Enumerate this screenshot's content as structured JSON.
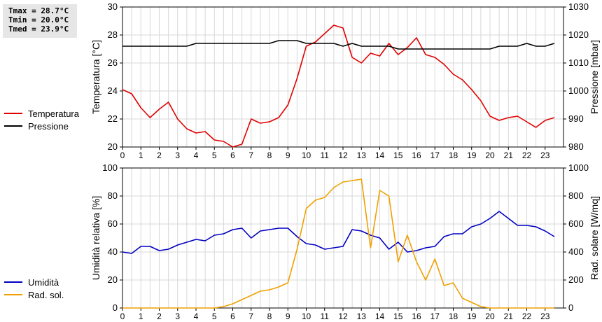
{
  "stats": {
    "tmax": "Tmax = 28.7°C",
    "tmin": "Tmin = 20.0°C",
    "tmed": "Tmed = 23.9°C"
  },
  "colors": {
    "temperature": "#e00000",
    "pressure": "#000000",
    "humidity": "#0000c0",
    "radiation": "#f0a000",
    "grid": "#d8d8d8"
  },
  "chart_data": [
    {
      "type": "line",
      "xlabel": "",
      "xlim": [
        0,
        24
      ],
      "xticks": [
        0,
        1,
        2,
        3,
        4,
        5,
        6,
        7,
        8,
        9,
        10,
        11,
        12,
        13,
        14,
        15,
        16,
        17,
        18,
        19,
        20,
        21,
        22,
        23
      ],
      "ylabel": "Temperatura [°C]",
      "ylim": [
        20,
        30
      ],
      "yticks": [
        20,
        22,
        24,
        26,
        28,
        30
      ],
      "y2label": "Pressione [mbar]",
      "y2lim": [
        980,
        1030
      ],
      "y2ticks": [
        980,
        990,
        1000,
        1010,
        1020,
        1030
      ],
      "grid": true,
      "legend_position": "left",
      "series": [
        {
          "name": "Temperatura",
          "axis": "left",
          "color": "#e00000",
          "x": [
            0,
            0.5,
            1,
            1.5,
            2,
            2.5,
            3,
            3.5,
            4,
            4.5,
            5,
            5.5,
            6,
            6.5,
            7,
            7.5,
            8,
            8.5,
            9,
            9.5,
            10,
            10.5,
            11,
            11.5,
            12,
            12.5,
            13,
            13.5,
            14,
            14.5,
            15,
            15.5,
            16,
            16.5,
            17,
            17.5,
            18,
            18.5,
            19,
            19.5,
            20,
            20.5,
            21,
            21.5,
            22,
            22.5,
            23,
            23.5
          ],
          "y": [
            24.1,
            23.8,
            22.8,
            22.1,
            22.7,
            23.2,
            22.0,
            21.3,
            21.0,
            21.1,
            20.5,
            20.4,
            20.0,
            20.2,
            22.0,
            21.7,
            21.8,
            22.1,
            23.0,
            24.9,
            27.2,
            27.5,
            28.1,
            28.7,
            28.5,
            26.4,
            26.0,
            26.7,
            26.5,
            27.4,
            26.6,
            27.1,
            27.8,
            26.6,
            26.4,
            25.9,
            25.2,
            24.8,
            24.1,
            23.3,
            22.2,
            21.9,
            22.1,
            22.2,
            21.8,
            21.4,
            21.9,
            22.1
          ]
        },
        {
          "name": "Pressione",
          "axis": "right",
          "color": "#000000",
          "x": [
            0,
            0.5,
            1,
            1.5,
            2,
            2.5,
            3,
            3.5,
            4,
            4.5,
            5,
            5.5,
            6,
            6.5,
            7,
            7.5,
            8,
            8.5,
            9,
            9.5,
            10,
            10.5,
            11,
            11.5,
            12,
            12.5,
            13,
            13.5,
            14,
            14.5,
            15,
            15.5,
            16,
            16.5,
            17,
            17.5,
            18,
            18.5,
            19,
            19.5,
            20,
            20.5,
            21,
            21.5,
            22,
            22.5,
            23,
            23.5
          ],
          "y": [
            1016,
            1016,
            1016,
            1016,
            1016,
            1016,
            1016,
            1016,
            1017,
            1017,
            1017,
            1017,
            1017,
            1017,
            1017,
            1017,
            1017,
            1018,
            1018,
            1018,
            1017,
            1017,
            1017,
            1017,
            1016,
            1017,
            1016,
            1016,
            1016,
            1016,
            1015,
            1015,
            1015,
            1015,
            1015,
            1015,
            1015,
            1015,
            1015,
            1015,
            1015,
            1016,
            1016,
            1016,
            1017,
            1016,
            1016,
            1017
          ]
        }
      ]
    },
    {
      "type": "line",
      "xlabel": "",
      "xlim": [
        0,
        24
      ],
      "xticks": [
        0,
        1,
        2,
        3,
        4,
        5,
        6,
        7,
        8,
        9,
        10,
        11,
        12,
        13,
        14,
        15,
        16,
        17,
        18,
        19,
        20,
        21,
        22,
        23
      ],
      "ylabel": "Umidità relativa [%]",
      "ylim": [
        0,
        100
      ],
      "yticks": [
        0,
        20,
        40,
        60,
        80,
        100
      ],
      "y2label": "Rad. solare [W/mq]",
      "y2lim": [
        0,
        1000
      ],
      "y2ticks": [
        0,
        200,
        400,
        600,
        800,
        1000
      ],
      "grid": true,
      "legend_position": "left",
      "series": [
        {
          "name": "Umidità",
          "axis": "left",
          "color": "#0000c0",
          "x": [
            0,
            0.5,
            1,
            1.5,
            2,
            2.5,
            3,
            3.5,
            4,
            4.5,
            5,
            5.5,
            6,
            6.5,
            7,
            7.5,
            8,
            8.5,
            9,
            9.5,
            10,
            10.5,
            11,
            11.5,
            12,
            12.5,
            13,
            13.5,
            14,
            14.5,
            15,
            15.5,
            16,
            16.5,
            17,
            17.5,
            18,
            18.5,
            19,
            19.5,
            20,
            20.5,
            21,
            21.5,
            22,
            22.5,
            23,
            23.5
          ],
          "y": [
            40,
            39,
            44,
            44,
            41,
            42,
            45,
            47,
            49,
            48,
            52,
            53,
            56,
            57,
            50,
            55,
            56,
            57,
            57,
            51,
            46,
            45,
            42,
            43,
            44,
            56,
            55,
            52,
            50,
            42,
            47,
            40,
            41,
            43,
            44,
            51,
            53,
            53,
            58,
            60,
            64,
            69,
            64,
            59,
            59,
            58,
            55,
            51
          ]
        },
        {
          "name": "Rad. sol.",
          "axis": "right",
          "color": "#f0a000",
          "x": [
            0,
            0.5,
            1,
            1.5,
            2,
            2.5,
            3,
            3.5,
            4,
            4.5,
            5,
            5.5,
            6,
            6.5,
            7,
            7.5,
            8,
            8.5,
            9,
            9.5,
            10,
            10.5,
            11,
            11.5,
            12,
            12.5,
            13,
            13.5,
            14,
            14.5,
            15,
            15.5,
            16,
            16.5,
            17,
            17.5,
            18,
            18.5,
            19,
            19.5,
            20,
            20.5,
            21,
            21.5,
            22,
            22.5,
            23,
            23.5
          ],
          "y": [
            0,
            0,
            0,
            0,
            0,
            0,
            0,
            0,
            0,
            0,
            0,
            10,
            30,
            60,
            90,
            120,
            130,
            150,
            180,
            420,
            710,
            770,
            790,
            860,
            900,
            910,
            920,
            430,
            840,
            800,
            330,
            520,
            330,
            200,
            350,
            160,
            180,
            70,
            40,
            10,
            0,
            0,
            0,
            0,
            0,
            0,
            0,
            0
          ]
        }
      ]
    }
  ]
}
